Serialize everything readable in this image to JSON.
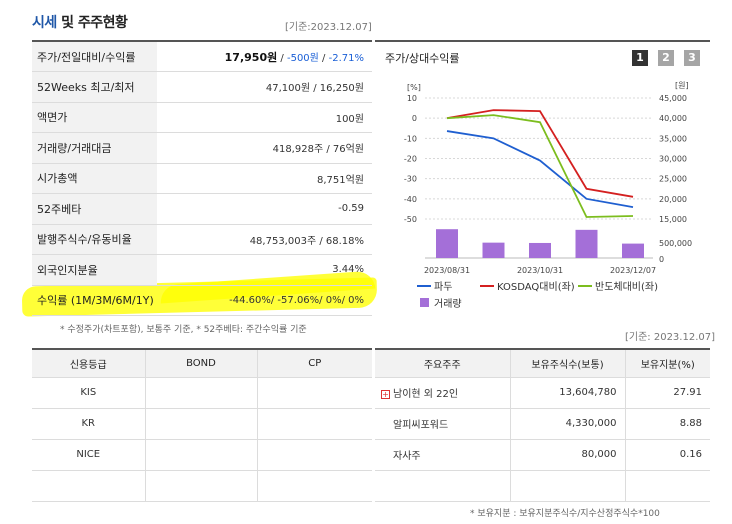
{
  "header": {
    "title_accent": "시세",
    "title_rest": " 및 주주현황",
    "date": "[기준:2023.12.07]"
  },
  "quote": {
    "rows": [
      {
        "label": "주가/전일대비/수익률",
        "price": "17,950원",
        "sep1": " / ",
        "change": "-500원",
        "sep2": " / ",
        "rate": "-2.71%"
      },
      {
        "label": "52Weeks 최고/최저",
        "value": "47,100원 / 16,250원"
      },
      {
        "label": "액면가",
        "value": "100원"
      },
      {
        "label": "거래량/거래대금",
        "value": "418,928주 / 76억원"
      },
      {
        "label": "시가총액",
        "value": "8,751억원"
      },
      {
        "label": "52주베타",
        "value": "-0.59"
      },
      {
        "label": "발행주식수/유동비율",
        "value": "48,753,003주 / 68.18%"
      },
      {
        "label": "외국인지분율",
        "value": "3.44%"
      },
      {
        "label": "수익률 (1M/3M/6M/1Y)",
        "value": "-44.60%/ -57.06%/ 0%/ 0%"
      }
    ],
    "note": "* 수정주가(차트포함), 보통주 기준, * 52주베타: 주간수익률 기준"
  },
  "chart_panel": {
    "title": "주가/상대수익률",
    "buttons": [
      "1",
      "2",
      "3"
    ],
    "colors": {
      "active": "#333333",
      "inactive": "#a5a5a5",
      "stock": "#1f5fd0",
      "kosdaq": "#d42020",
      "semi": "#7cbd1e",
      "volume": "#a46fd8"
    }
  },
  "chart_data": {
    "type": "line",
    "left_unit": "[%]",
    "right_unit": "[원]",
    "x_labels": [
      "2023/08/31",
      "2023/10/31",
      "2023/12/07"
    ],
    "left_ticks": [
      "10",
      "0",
      "-10",
      "-20",
      "-30",
      "-40",
      "-50"
    ],
    "right_ticks": [
      "45,000",
      "40,000",
      "35,000",
      "30,000",
      "25,000",
      "20,000",
      "15,000"
    ],
    "volume_ticks": [
      "500,000",
      "0"
    ],
    "ylim_left": [
      -50,
      10
    ],
    "ylim_right": [
      15000,
      45000
    ],
    "series": [
      {
        "name": "파두",
        "axis": "right",
        "color": "#1f5fd0",
        "values": [
          36800,
          35000,
          29500,
          20000,
          17950
        ]
      },
      {
        "name": "KOSDAQ대비(좌)",
        "axis": "left",
        "color": "#d42020",
        "values": [
          0,
          4,
          3.5,
          -35,
          -39
        ]
      },
      {
        "name": "반도체대비(좌)",
        "axis": "left",
        "color": "#7cbd1e",
        "values": [
          0,
          1.5,
          -2,
          -49,
          -48.5
        ]
      }
    ],
    "volume": {
      "name": "거래량",
      "values": [
        900000,
        480000,
        470000,
        880000,
        450000
      ],
      "ylim": [
        0,
        1000000
      ]
    }
  },
  "credit": {
    "headers": [
      "신용등급",
      "BOND",
      "CP"
    ],
    "rows": [
      [
        "KIS",
        "",
        ""
      ],
      [
        "KR",
        "",
        ""
      ],
      [
        "NICE",
        "",
        ""
      ],
      [
        "",
        "",
        ""
      ]
    ]
  },
  "holders": {
    "date": "[기준: 2023.12.07]",
    "headers": [
      "주요주주",
      "보유주식수(보통)",
      "보유지분(%)"
    ],
    "rows": [
      {
        "name": "남이현 외 22인",
        "shares": "13,604,780",
        "pct": "27.91"
      },
      {
        "name": "알피씨포워드",
        "shares": "4,330,000",
        "pct": "8.88"
      },
      {
        "name": "자사주",
        "shares": "80,000",
        "pct": "0.16"
      },
      {
        "name": "",
        "shares": "",
        "pct": ""
      }
    ],
    "note": "* 보유지분 : 보유지분주식수/지수산정주식수*100"
  }
}
